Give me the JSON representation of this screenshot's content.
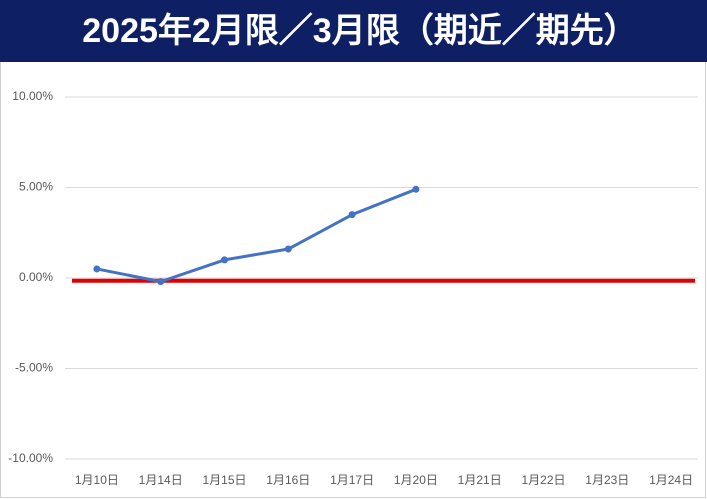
{
  "chart_data": {
    "type": "line",
    "title": "2025年2月限／3月限（期近／期先）",
    "categories": [
      "1月10日",
      "1月14日",
      "1月15日",
      "1月16日",
      "1月17日",
      "1月20日",
      "1月21日",
      "1月22日",
      "1月23日",
      "1月24日"
    ],
    "series": [
      {
        "color": "#4472c4",
        "values": [
          0.5,
          -0.2,
          1.0,
          1.6,
          3.5,
          4.9,
          null,
          null,
          null,
          null
        ]
      }
    ],
    "reference_line": {
      "value": -0.15,
      "color": "#e00000"
    },
    "ylim": [
      -10,
      10
    ],
    "yticks": [
      {
        "value": -10,
        "label": "-10.00%"
      },
      {
        "value": -5,
        "label": "-5.00%"
      },
      {
        "value": 0,
        "label": "0.00%"
      },
      {
        "value": 5,
        "label": "5.00%"
      },
      {
        "value": 10,
        "label": "10.00%"
      }
    ],
    "grid": true
  }
}
